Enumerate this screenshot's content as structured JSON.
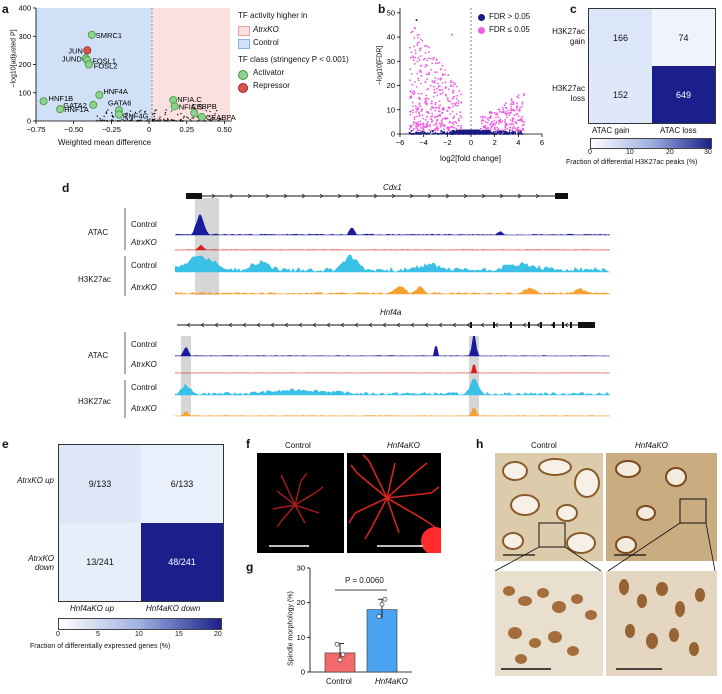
{
  "panels": {
    "a": "a",
    "b": "b",
    "c": "c",
    "d": "d",
    "e": "e",
    "f": "f",
    "g": "g",
    "h": "h"
  },
  "colors": {
    "control_region": "#cfe0f7",
    "atrx_region": "#fbe0e0",
    "activator": "#8fd18f",
    "repressor": "#d9534f",
    "fdr_high": "#1a1a80",
    "fdr_low": "#f05ce0",
    "atac_control": "#1a1a9c",
    "atac_ko": "#d62020",
    "h3k27_control": "#39c0e6",
    "h3k27_ko": "#f5a030",
    "bar_control": "#f36a6a",
    "bar_ko": "#4aa3f0",
    "heat_max": "#1a1f8c"
  },
  "panel_a": {
    "ylabel": "−log10[adjusted P]",
    "xlabel": "Weighted mean difference",
    "xticks": [
      "−0.75",
      "−0.50",
      "−0.25",
      "0",
      "0.25",
      "0.50"
    ],
    "yticks": [
      "0",
      "100",
      "200",
      "300",
      "400"
    ],
    "legend_title": "TF activity higher in",
    "legend_atrx": "AtrxKO",
    "legend_control": "Control",
    "class_title": "TF class (stringency P < 0.001)",
    "class_activator": "Activator",
    "class_repressor": "Repressor",
    "labels": [
      "SMRC1",
      "JUN",
      "JUND",
      "FOSL1",
      "FOSL2",
      "HNF4A",
      "HNF1B",
      "GATA2",
      "GATA6",
      "HNF1A",
      "RNF4G",
      "NFIA.C",
      "NFIA.S",
      "CEBPB",
      "CEABPA"
    ]
  },
  "panel_b": {
    "ylabel": "−log10[FDR]",
    "xlabel": "log2[fold change]",
    "xticks": [
      "−6",
      "−4",
      "−2",
      "0",
      "2",
      "4",
      "6"
    ],
    "yticks": [
      "0",
      "10",
      "20",
      "30",
      "40",
      "50"
    ],
    "legend_high": "FDR > 0.05",
    "legend_low": "FDR ≤ 0.05"
  },
  "panel_c": {
    "row_labels": [
      "H3K27ac gain",
      "H3K27ac loss"
    ],
    "col_labels": [
      "ATAC gain",
      "ATAC loss"
    ],
    "values": [
      [
        "166",
        "74"
      ],
      [
        "152",
        "649"
      ]
    ],
    "scale_ticks": [
      "0",
      "10",
      "20",
      "30"
    ],
    "scale_label": "Fraction of differential H3K27ac peaks (%)"
  },
  "panel_d": {
    "gene1": "Cdx1",
    "gene2": "Hnf4a",
    "atac": "ATAC",
    "h3k27ac": "H3K27ac",
    "control": "Control",
    "atrx_ko": "AtrxKO"
  },
  "panel_e": {
    "row_labels": [
      "AtrxKO up",
      "AtrxKO down"
    ],
    "col_labels": [
      "Hnf4aKO up",
      "Hnf4aKO down"
    ],
    "values": [
      [
        "9/133",
        "6/133"
      ],
      [
        "13/241",
        "48/241"
      ]
    ],
    "scale_ticks": [
      "0",
      "5",
      "10",
      "15",
      "20"
    ],
    "scale_label": "Fraction of differentially expressed genes (%)"
  },
  "panel_f": {
    "control": "Control",
    "ko": "Hnf4aKO"
  },
  "panel_g": {
    "ylabel": "Spindle morphology (%)",
    "yticks": [
      "0",
      "10",
      "20",
      "30"
    ],
    "pvalue": "P = 0.0060",
    "categories": [
      "Control",
      "Hnf4aKO"
    ]
  },
  "panel_h": {
    "control": "Control",
    "ko": "Hnf4aKO"
  },
  "chart_data": [
    {
      "type": "scatter",
      "panel": "a",
      "x_label": "Weighted mean difference",
      "y_label": "−log10[adjusted P]",
      "xlim": [
        -0.75,
        0.55
      ],
      "ylim": [
        0,
        400
      ],
      "points": [
        {
          "name": "SMRC1",
          "x": -0.38,
          "y": 305
        },
        {
          "name": "JUN",
          "x": -0.41,
          "y": 250
        },
        {
          "name": "JUND",
          "x": -0.42,
          "y": 222
        },
        {
          "name": "FOSL1",
          "x": -0.41,
          "y": 215
        },
        {
          "name": "FOSL2",
          "x": -0.4,
          "y": 200
        },
        {
          "name": "HNF4A",
          "x": -0.33,
          "y": 92
        },
        {
          "name": "HNF1B",
          "x": -0.7,
          "y": 70
        },
        {
          "name": "GATA2",
          "x": -0.37,
          "y": 57
        },
        {
          "name": "GATA6",
          "x": -0.2,
          "y": 38
        },
        {
          "name": "HNF1A",
          "x": -0.59,
          "y": 42
        },
        {
          "name": "RNF4G",
          "x": -0.2,
          "y": 23
        },
        {
          "name": "NFIA.C",
          "x": 0.16,
          "y": 74
        },
        {
          "name": "NFIA.S",
          "x": 0.17,
          "y": 52
        },
        {
          "name": "CEBPB",
          "x": 0.3,
          "y": 28
        },
        {
          "name": "CEABPA",
          "x": 0.35,
          "y": 14
        }
      ]
    },
    {
      "type": "bar",
      "panel": "g",
      "categories": [
        "Control",
        "Hnf4aKO"
      ],
      "values": [
        5.5,
        18
      ],
      "ylim": [
        0,
        30
      ]
    }
  ]
}
